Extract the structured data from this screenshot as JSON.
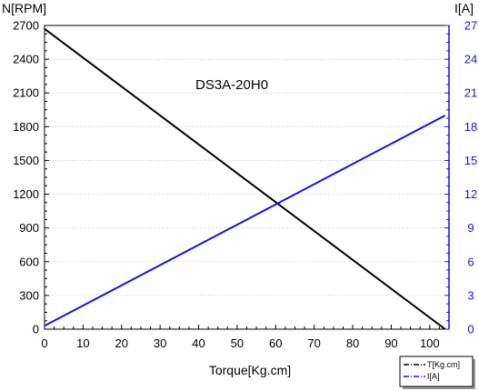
{
  "colors": {
    "left_axis": "#000000",
    "right_axis": "#1414e6",
    "grid": "#bdbdbd",
    "series_speed": "#000000",
    "series_current": "#1414e6"
  },
  "chart_data": {
    "type": "line",
    "title": "DS3A-20H0",
    "xlabel": "Torque[Kg.cm]",
    "ylabel_left": "N[RPM]",
    "ylabel_right": "I[A]",
    "xlim": [
      0,
      105
    ],
    "ylim_left": [
      0,
      2700
    ],
    "ylim_right": [
      0,
      27
    ],
    "x_ticks": [
      "0",
      "10",
      "20",
      "30",
      "40",
      "50",
      "60",
      "70",
      "80",
      "90",
      "100"
    ],
    "y_left_ticks": [
      "0",
      "300",
      "600",
      "900",
      "1200",
      "1500",
      "1800",
      "2100",
      "2400",
      "2700"
    ],
    "y_right_ticks": [
      "0",
      "3",
      "6",
      "9",
      "12",
      "15",
      "18",
      "21",
      "24",
      "27"
    ],
    "grid": "horizontal",
    "legend_position": "bottom-right",
    "series": [
      {
        "name": "T[Kg.cm]",
        "axis": "left",
        "style": "dash-dot",
        "color": "#000000",
        "x": [
          0,
          104
        ],
        "y": [
          2670,
          0
        ]
      },
      {
        "name": "I[A]",
        "axis": "right",
        "style": "dash-dot",
        "color": "#1414e6",
        "x": [
          0,
          104
        ],
        "y": [
          0.3,
          19
        ]
      }
    ]
  }
}
